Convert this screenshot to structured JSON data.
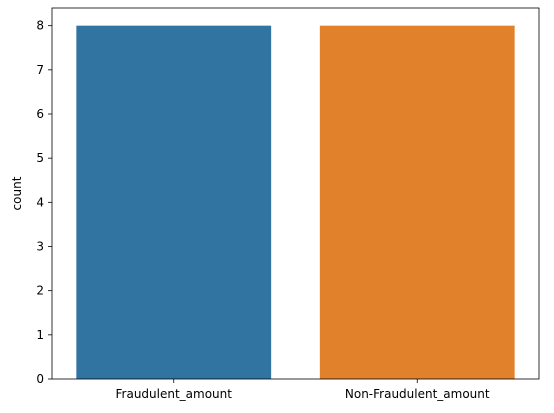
{
  "chart_data": {
    "type": "bar",
    "categories": [
      "Fraudulent_amount",
      "Non-Fraudulent_amount"
    ],
    "values": [
      8,
      8
    ],
    "colors": [
      "#3274a1",
      "#e1812c"
    ],
    "title": "",
    "xlabel": "",
    "ylabel": "count",
    "ylim": [
      0,
      8.4
    ],
    "yticks": [
      0,
      1,
      2,
      3,
      4,
      5,
      6,
      7,
      8
    ],
    "grid": false,
    "legend": "none"
  }
}
